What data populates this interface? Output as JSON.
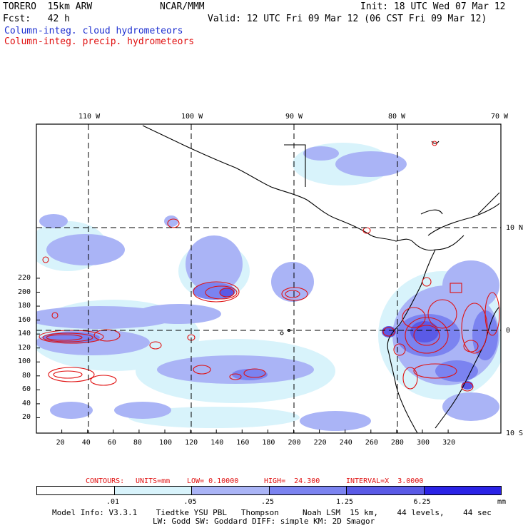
{
  "header": {
    "model": "TORERO  15km ARW",
    "org": "NCAR/MMM",
    "init": "Init: 18 UTC Wed 07 Mar 12",
    "forecast": "Fcst:   42 h",
    "valid": "Valid: 12 UTC Fri 09 Mar 12 (06 CST Fri 09 Mar 12)",
    "field1": "Column-integ. cloud hydrometeors",
    "field2": "Column-integ. precip. hydrometeors"
  },
  "map": {
    "lon_labels": [
      "110 W",
      "100 W",
      "90 W",
      "80 W",
      "70 W"
    ],
    "lat_labels": [
      "10 N",
      "0",
      "10 S"
    ],
    "x_ticks": [
      "20",
      "40",
      "60",
      "80",
      "100",
      "120",
      "140",
      "160",
      "180",
      "200",
      "220",
      "240",
      "260",
      "280",
      "300",
      "320"
    ],
    "y_ticks": [
      "220",
      "200",
      "180",
      "160",
      "140",
      "120",
      "100",
      "80",
      "60",
      "40",
      "20"
    ]
  },
  "contour_info": {
    "label": "CONTOURS:",
    "units": "UNITS=mm",
    "low": "LOW= 0.10000",
    "high": "HIGH=  24.300",
    "interval": "INTERVAL=X  3.0000"
  },
  "colorbar": {
    "labels": [
      ".01",
      ".05",
      ".25",
      "1.25",
      "6.25",
      "mm"
    ],
    "colors": [
      "#ffffff",
      "#d8f3fb",
      "#aab4f6",
      "#7b83f0",
      "#5a5ae6",
      "#2a22e6"
    ]
  },
  "footer": {
    "line1": "Model Info: V3.3.1    Tiedtke YSU PBL   Thompson     Noah LSM  15 km,    44 levels,    44 sec",
    "line2": "LW: Godd SW: Goddard DIFF: simple KM: 2D Smagor"
  }
}
